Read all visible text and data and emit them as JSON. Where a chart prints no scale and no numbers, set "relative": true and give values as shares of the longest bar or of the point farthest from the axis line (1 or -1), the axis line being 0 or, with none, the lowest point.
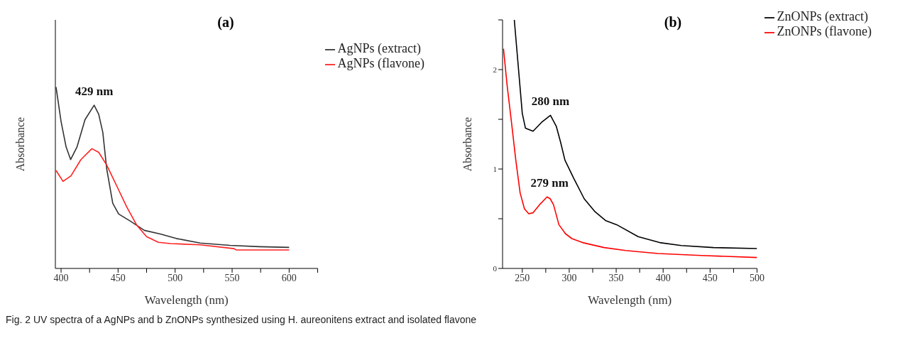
{
  "chart_data": [
    {
      "type": "line",
      "title": "(a)",
      "xlabel": "Wavelength (nm)",
      "ylabel": "Absorbance",
      "relative": true,
      "xlim": [
        395,
        625
      ],
      "xticks": [
        400,
        {
          "value": 425,
          "label": null
        },
        450,
        {
          "value": 475,
          "label": null
        },
        500,
        {
          "value": 525,
          "label": null
        },
        550,
        {
          "value": 575,
          "label": null
        },
        600,
        {
          "value": 625,
          "label": null
        }
      ],
      "legend": "top right",
      "marker": "none",
      "line_style": "solid",
      "series": [
        {
          "name": "AgNPs (extract)",
          "color": "#333333",
          "x": [
            395.6,
            400,
            404.4,
            408.4,
            414,
            421,
            429,
            433,
            436.6,
            440,
            445.3,
            450.5,
            461,
            473,
            487,
            501,
            522,
            548,
            574,
            600
          ],
          "values": [
            1.0,
            0.81,
            0.67,
            0.6,
            0.67,
            0.82,
            0.9,
            0.85,
            0.75,
            0.55,
            0.36,
            0.3,
            0.26,
            0.21,
            0.19,
            0.165,
            0.14,
            0.127,
            0.12,
            0.116
          ]
        },
        {
          "name": "AgNPs (flavone)",
          "color": "#ff2020",
          "x": [
            395.6,
            401.7,
            408.7,
            417.4,
            427,
            433,
            440,
            448.8,
            457.5,
            466.2,
            475,
            485.4,
            496,
            522,
            551.7,
            553.4,
            600
          ],
          "values": [
            0.54,
            0.48,
            0.51,
            0.6,
            0.66,
            0.64,
            0.57,
            0.455,
            0.34,
            0.24,
            0.175,
            0.144,
            0.137,
            0.13,
            0.109,
            0.102,
            0.102
          ]
        }
      ],
      "annotations": [
        {
          "text": "429 nm",
          "x": 429,
          "y": 0.9
        },
        "Fig. 2 UV spectra of a AgNPs and b ZnONPs synthesized using H. aureonitens extract and isolated flavone"
      ]
    },
    {
      "type": "line",
      "title": "(b)",
      "xlabel": "Wavelength (nm)",
      "ylabel": "Absorbance",
      "xlim": [
        229,
        500
      ],
      "xticks": [
        250,
        {
          "value": 275,
          "label": null
        },
        300,
        {
          "value": 325,
          "label": null
        },
        350,
        {
          "value": 375,
          "label": null
        },
        400,
        {
          "value": 425,
          "label": null
        },
        450,
        {
          "value": 475,
          "label": null
        },
        500
      ],
      "ylim": [
        0,
        2.5
      ],
      "yticks": [
        0,
        {
          "value": 0.5,
          "label": null
        },
        1,
        {
          "value": 1.5,
          "label": null
        },
        2,
        {
          "value": 2.5,
          "label": null
        }
      ],
      "legend": "top right",
      "marker": "none",
      "line_style": "solid",
      "series": [
        {
          "name": "ZnONPs (extract)",
          "color": "#000000",
          "x": [
            241.5,
            245.4,
            250,
            253.4,
            261.5,
            270.6,
            280,
            286.2,
            290.8,
            295.4,
            304.6,
            316,
            327.5,
            339,
            350.5,
            373.4,
            396.3,
            419.3,
            453.7,
            500
          ],
          "values": [
            2.5,
            2.07,
            1.56,
            1.41,
            1.38,
            1.47,
            1.54,
            1.43,
            1.27,
            1.09,
            0.91,
            0.7,
            0.57,
            0.48,
            0.44,
            0.32,
            0.26,
            0.23,
            0.21,
            0.2
          ]
        },
        {
          "name": "ZnONPs (flavone)",
          "color": "#ff0000",
          "x": [
            230,
            234,
            238.5,
            243.1,
            247.7,
            252.3,
            256.9,
            261.5,
            268.3,
            276.4,
            279.8,
            283.3,
            289,
            295.9,
            302.8,
            314.2,
            337.2,
            360,
            394.5,
            440.4,
            500
          ],
          "values": [
            2.21,
            1.83,
            1.47,
            1.09,
            0.76,
            0.6,
            0.55,
            0.56,
            0.64,
            0.72,
            0.7,
            0.64,
            0.44,
            0.35,
            0.3,
            0.26,
            0.21,
            0.18,
            0.15,
            0.13,
            0.11
          ]
        }
      ],
      "annotations": [
        {
          "text": "280 nm",
          "x": 280,
          "y": 1.54
        },
        {
          "text": "279 nm",
          "x": 279,
          "y": 0.72
        }
      ]
    }
  ]
}
